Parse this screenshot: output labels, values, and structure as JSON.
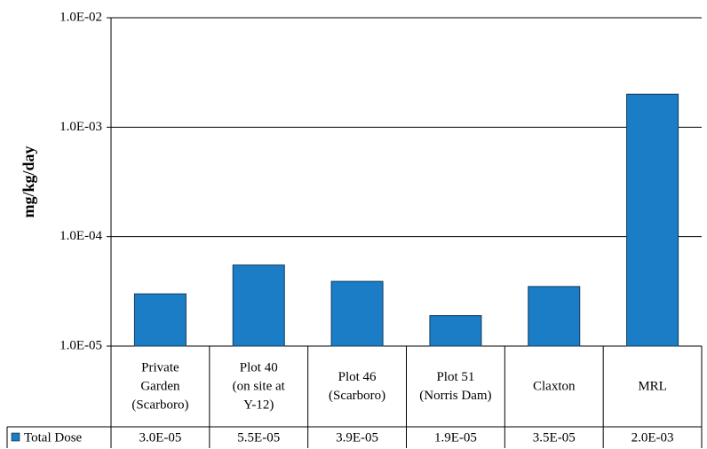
{
  "chart_data": {
    "type": "bar",
    "y_label": "mg/kg/day",
    "log_scale": true,
    "grid": true,
    "categories": [
      [
        "Private",
        "Garden",
        "(Scarboro)"
      ],
      [
        "Plot 40",
        "(on site at",
        "Y-12)"
      ],
      [
        "Plot 46",
        "(Scarboro)"
      ],
      [
        "Plot 51",
        "(Norris Dam)"
      ],
      [
        "Claxton"
      ],
      [
        "MRL"
      ]
    ],
    "series": [
      {
        "name": "Total Dose",
        "color": "#1a7dc6",
        "values": [
          3e-05,
          5.5e-05,
          3.9e-05,
          1.9e-05,
          3.5e-05,
          0.002
        ],
        "value_labels": [
          "3.0E-05",
          "5.5E-05",
          "3.9E-05",
          "1.9E-05",
          "3.5E-05",
          "2.0E-03"
        ]
      }
    ],
    "ylim": [
      1e-05,
      0.01
    ],
    "yticks": [
      {
        "value": 1e-05,
        "label": "1.0E-05"
      },
      {
        "value": 0.0001,
        "label": "1.0E-04"
      },
      {
        "value": 0.001,
        "label": "1.0E-03"
      },
      {
        "value": 0.01,
        "label": "1.0E-02"
      }
    ]
  }
}
